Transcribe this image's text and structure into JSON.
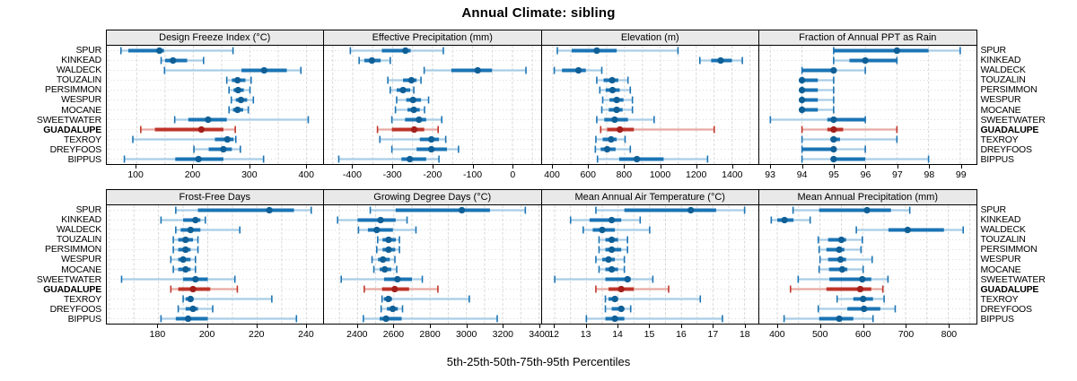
{
  "title": "Annual Climate: sibling",
  "caption": "5th-25th-50th-75th-95th Percentiles",
  "highlight_site": "GUADALUPE",
  "colors": {
    "blue": "#1b74b4",
    "blue_light": "#a9cde6",
    "blue_dot": "#0f5f97",
    "red": "#bf3429",
    "red_light": "#e8aaa2",
    "red_dot": "#a31f1a",
    "strip_bg": "#e9e9e9",
    "grid": "#d8d8d8",
    "border": "#000000"
  },
  "sites": [
    "SPUR",
    "KINKEAD",
    "WALDECK",
    "TOUZALIN",
    "PERSIMMON",
    "WESPUR",
    "MOCANE",
    "SWEETWATER",
    "GUADALUPE",
    "TEXROY",
    "DREYFOOS",
    "BIPPUS"
  ],
  "chart_data": {
    "type": "dotplot-intervals",
    "percentile_labels": [
      "5th",
      "25th",
      "50th",
      "75th",
      "95th"
    ],
    "panels": [
      {
        "title": "Design Freeze Index (°C)",
        "row": 0,
        "col": 0,
        "xlim": [
          47,
          430
        ],
        "ticks": [
          100,
          200,
          300,
          400
        ],
        "grid_step": 50,
        "values": {
          "SPUR": [
            72,
            85,
            140,
            148,
            270
          ],
          "KINKEAD": [
            143,
            150,
            164,
            189,
            218
          ],
          "WALDECK": [
            149,
            285,
            325,
            365,
            390
          ],
          "TOUZALIN": [
            259,
            268,
            278,
            292,
            302
          ],
          "PERSIMMON": [
            263,
            271,
            279,
            289,
            300
          ],
          "WESPUR": [
            267,
            275,
            284,
            295,
            306
          ],
          "MOCANE": [
            263,
            270,
            278,
            288,
            297
          ],
          "SWEETWATER": [
            167,
            191,
            226,
            259,
            403
          ],
          "GUADALUPE": [
            107,
            132,
            214,
            253,
            274
          ],
          "TEXROY": [
            93,
            238,
            260,
            271,
            275
          ],
          "DREYFOOS": [
            201,
            227,
            253,
            268,
            283
          ],
          "BIPPUS": [
            78,
            168,
            209,
            253,
            324
          ]
        }
      },
      {
        "title": "Effective Precipitation (mm)",
        "row": 0,
        "col": 1,
        "xlim": [
          -472,
          71
        ],
        "ticks": [
          -400,
          -300,
          -200,
          -100,
          0
        ],
        "grid_step": 50,
        "values": {
          "SPUR": [
            -406,
            -327,
            -268,
            -255,
            -173
          ],
          "KINKEAD": [
            -384,
            -371,
            -352,
            -330,
            -306
          ],
          "WALDECK": [
            -221,
            -153,
            -87,
            -51,
            34
          ],
          "TOUZALIN": [
            -312,
            -274,
            -253,
            -240,
            -229
          ],
          "PERSIMMON": [
            -306,
            -290,
            -274,
            -256,
            -247
          ],
          "WESPUR": [
            -290,
            -266,
            -249,
            -229,
            -210
          ],
          "MOCANE": [
            -293,
            -263,
            -247,
            -232,
            -220
          ],
          "SWEETWATER": [
            -302,
            -269,
            -234,
            -216,
            -177
          ],
          "GUADALUPE": [
            -338,
            -302,
            -246,
            -221,
            -186
          ],
          "TEXROY": [
            -332,
            -232,
            -203,
            -184,
            -167
          ],
          "DREYFOOS": [
            -302,
            -240,
            -203,
            -164,
            -135
          ],
          "BIPPUS": [
            -435,
            -278,
            -257,
            -216,
            -184
          ]
        }
      },
      {
        "title": "Elevation (m)",
        "row": 0,
        "col": 2,
        "xlim": [
          340,
          1549
        ],
        "ticks": [
          400,
          600,
          800,
          1000,
          1200,
          1400
        ],
        "grid_step": 100,
        "values": {
          "SPUR": [
            425,
            505,
            645,
            756,
            1098
          ],
          "KINKEAD": [
            1220,
            1283,
            1336,
            1399,
            1457
          ],
          "WALDECK": [
            408,
            451,
            543,
            584,
            673
          ],
          "TOUZALIN": [
            645,
            683,
            731,
            765,
            819
          ],
          "PERSIMMON": [
            662,
            695,
            733,
            773,
            832
          ],
          "WESPUR": [
            678,
            716,
            756,
            794,
            844
          ],
          "MOCANE": [
            673,
            712,
            756,
            789,
            844
          ],
          "SWEETWATER": [
            645,
            687,
            745,
            819,
            965
          ],
          "GUADALUPE": [
            667,
            703,
            774,
            852,
            1300
          ],
          "TEXROY": [
            640,
            678,
            725,
            756,
            803
          ],
          "DREYFOOS": [
            637,
            667,
            703,
            750,
            832
          ],
          "BIPPUS": [
            649,
            770,
            869,
            1018,
            1263
          ]
        }
      },
      {
        "title": "Fraction of Annual PPT as Rain",
        "row": 0,
        "col": 3,
        "xlim": [
          92.65,
          99.5
        ],
        "ticks": [
          93,
          94,
          95,
          96,
          97,
          98,
          99
        ],
        "grid_step": 1,
        "values": {
          "SPUR": [
            95,
            95,
            97,
            98,
            99
          ],
          "KINKEAD": [
            95,
            95.5,
            96,
            97,
            97
          ],
          "WALDECK": [
            94,
            94,
            95,
            95,
            96
          ],
          "TOUZALIN": [
            94,
            94,
            94,
            94.5,
            95
          ],
          "PERSIMMON": [
            94,
            94,
            94,
            94.5,
            95
          ],
          "WESPUR": [
            94,
            94,
            94,
            94.5,
            95
          ],
          "MOCANE": [
            94,
            94,
            94,
            94.5,
            95
          ],
          "SWEETWATER": [
            93,
            94.8,
            95,
            96,
            96
          ],
          "GUADALUPE": [
            94,
            94.8,
            95,
            95.3,
            97
          ],
          "TEXROY": [
            94,
            94.9,
            95,
            95.2,
            97
          ],
          "DREYFOOS": [
            94,
            94,
            95,
            95,
            96
          ],
          "BIPPUS": [
            94,
            95,
            95,
            96,
            98
          ]
        }
      },
      {
        "title": "Frost-Free Days",
        "row": 1,
        "col": 0,
        "xlim": [
          159,
          247
        ],
        "ticks": [
          180,
          200,
          220,
          240
        ],
        "grid_step": 10,
        "values": {
          "SPUR": [
            187,
            196,
            225,
            235,
            242
          ],
          "KINKEAD": [
            181,
            190,
            195,
            197,
            199
          ],
          "WALDECK": [
            187,
            189,
            193,
            197,
            213
          ],
          "TOUZALIN": [
            186,
            188,
            191,
            194,
            196
          ],
          "PERSIMMON": [
            186,
            188,
            191,
            193,
            196
          ],
          "WESPUR": [
            185,
            188,
            190,
            193,
            195
          ],
          "MOCANE": [
            186,
            188,
            191,
            193,
            195
          ],
          "SWEETWATER": [
            165,
            190,
            195,
            200,
            211
          ],
          "GUADALUPE": [
            185,
            188,
            194,
            201,
            212
          ],
          "TEXROY": [
            190,
            191,
            193,
            194,
            226
          ],
          "DREYFOOS": [
            188,
            191,
            194,
            196,
            202
          ],
          "BIPPUS": [
            181,
            187,
            192,
            200,
            236
          ]
        }
      },
      {
        "title": "Growing Degree Days (°C)",
        "row": 1,
        "col": 1,
        "xlim": [
          2215,
          3410
        ],
        "ticks": [
          2400,
          2600,
          2800,
          3000,
          3200,
          3400
        ],
        "grid_step": 100,
        "values": {
          "SPUR": [
            2470,
            2610,
            2975,
            3130,
            3325
          ],
          "KINKEAD": [
            2290,
            2400,
            2527,
            2610,
            2673
          ],
          "WALDECK": [
            2405,
            2457,
            2506,
            2595,
            2722
          ],
          "TOUZALIN": [
            2511,
            2538,
            2571,
            2611,
            2631
          ],
          "PERSIMMON": [
            2506,
            2538,
            2571,
            2608,
            2631
          ],
          "WESPUR": [
            2480,
            2513,
            2540,
            2578,
            2606
          ],
          "MOCANE": [
            2490,
            2522,
            2550,
            2586,
            2616
          ],
          "SWEETWATER": [
            2310,
            2546,
            2620,
            2700,
            2757
          ],
          "GUADALUPE": [
            2437,
            2535,
            2605,
            2684,
            2843
          ],
          "TEXROY": [
            2535,
            2545,
            2570,
            2590,
            3016
          ],
          "DREYFOOS": [
            2530,
            2562,
            2594,
            2622,
            2648
          ],
          "BIPPUS": [
            2432,
            2522,
            2557,
            2643,
            3170
          ]
        }
      },
      {
        "title": "Mean Annual Air Temperature (°C)",
        "row": 1,
        "col": 2,
        "xlim": [
          11.6,
          18.45
        ],
        "ticks": [
          12,
          13,
          14,
          15,
          16,
          17,
          18
        ],
        "grid_step": 0.5,
        "values": {
          "SPUR": [
            13.3,
            14.2,
            16.3,
            17.1,
            18.0
          ],
          "KINKEAD": [
            12.5,
            13.1,
            13.8,
            14.1,
            14.7
          ],
          "WALDECK": [
            12.9,
            13.2,
            13.5,
            13.9,
            15.0
          ],
          "TOUZALIN": [
            13.4,
            13.6,
            13.8,
            14.0,
            14.3
          ],
          "PERSIMMON": [
            13.4,
            13.6,
            13.8,
            14.1,
            14.3
          ],
          "WESPUR": [
            13.3,
            13.5,
            13.7,
            13.9,
            14.2
          ],
          "MOCANE": [
            13.4,
            13.6,
            13.8,
            14.0,
            14.2
          ],
          "SWEETWATER": [
            12.0,
            13.6,
            14.3,
            14.4,
            15.1
          ],
          "GUADALUPE": [
            13.3,
            13.7,
            14.1,
            14.5,
            15.6
          ],
          "TEXROY": [
            13.6,
            13.7,
            13.9,
            14.0,
            16.6
          ],
          "DREYFOOS": [
            13.6,
            13.8,
            14.1,
            14.2,
            14.4
          ],
          "BIPPUS": [
            13.0,
            13.6,
            13.9,
            14.2,
            17.3
          ]
        }
      },
      {
        "title": "Mean Annual Precipitation (mm)",
        "row": 1,
        "col": 3,
        "xlim": [
          358,
          865
        ],
        "ticks": [
          400,
          500,
          600,
          700,
          800
        ],
        "grid_step": 50,
        "values": {
          "SPUR": [
            437,
            498,
            610,
            666,
            710
          ],
          "KINKEAD": [
            386,
            400,
            417,
            438,
            477
          ],
          "WALDECK": [
            585,
            660,
            705,
            790,
            835
          ],
          "TOUZALIN": [
            496,
            519,
            550,
            561,
            599
          ],
          "PERSIMMON": [
            498,
            515,
            545,
            557,
            596
          ],
          "WESPUR": [
            500,
            519,
            548,
            561,
            622
          ],
          "MOCANE": [
            498,
            521,
            552,
            564,
            601
          ],
          "SWEETWATER": [
            449,
            522,
            599,
            620,
            659
          ],
          "GUADALUPE": [
            431,
            515,
            594,
            620,
            647
          ],
          "TEXROY": [
            540,
            578,
            601,
            624,
            650
          ],
          "DREYFOOS": [
            496,
            564,
            603,
            641,
            676
          ],
          "BIPPUS": [
            416,
            498,
            545,
            578,
            624
          ]
        }
      }
    ]
  }
}
